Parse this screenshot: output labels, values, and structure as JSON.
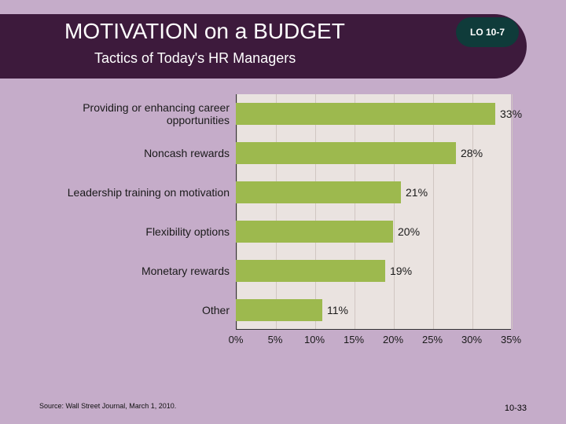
{
  "slide": {
    "background_color": "#c5acc9",
    "header": {
      "band_color": "#3d1a3c",
      "title": "MOTIVATION on a BUDGET",
      "title_color": "#ffffff",
      "subtitle": "Tactics of Today's HR Managers",
      "subtitle_color": "#ffffff",
      "lo_badge": {
        "text": "LO 10-7",
        "bg": "#0f3b3a"
      }
    },
    "chart": {
      "type": "bar-horizontal",
      "plot_bg": "#eae3e0",
      "grid_color": "#d0c6c2",
      "bar_color": "#9db94e",
      "label_color": "#1a1a1a",
      "value_color": "#1a1a1a",
      "xlim_max": 35,
      "xtick_step": 5,
      "xticks": [
        "0%",
        "5%",
        "10%",
        "15%",
        "20%",
        "25%",
        "30%",
        "35%"
      ],
      "rows": [
        {
          "label": "Providing or enhancing career opportunities",
          "value": 33,
          "value_text": "33%"
        },
        {
          "label": "Noncash rewards",
          "value": 28,
          "value_text": "28%"
        },
        {
          "label": "Leadership training on motivation",
          "value": 21,
          "value_text": "21%"
        },
        {
          "label": "Flexibility options",
          "value": 20,
          "value_text": "20%"
        },
        {
          "label": "Monetary rewards",
          "value": 19,
          "value_text": "19%"
        },
        {
          "label": "Other",
          "value": 11,
          "value_text": "11%"
        }
      ]
    },
    "source": "Source: Wall Street Journal, March 1, 2010.",
    "page_num": "10-33"
  }
}
